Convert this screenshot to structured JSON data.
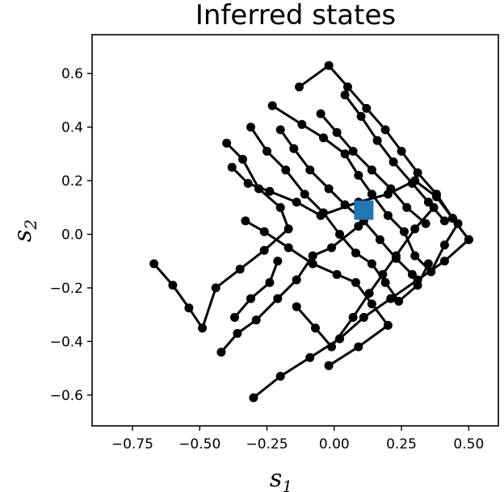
{
  "chart_data": {
    "type": "scatter",
    "title": "Inferred states",
    "xlabel": {
      "base": "s",
      "sub": "1"
    },
    "ylabel": {
      "base": "s",
      "sub": "2"
    },
    "xlim": [
      -0.9,
      0.61
    ],
    "ylim": [
      -0.715,
      0.745
    ],
    "xticks": [
      -0.75,
      -0.5,
      -0.25,
      0.0,
      0.25,
      0.5
    ],
    "xtick_labels": [
      "−0.75",
      "−0.50",
      "−0.25",
      "0.00",
      "0.25",
      "0.50"
    ],
    "yticks": [
      -0.6,
      -0.4,
      -0.2,
      0.0,
      0.2,
      0.4,
      0.6
    ],
    "ytick_labels": [
      "−0.6",
      "−0.4",
      "−0.2",
      "0.0",
      "0.2",
      "0.4",
      "0.6"
    ],
    "grid": false,
    "marker_color": "#000000",
    "highlight_color": "#1f77b4",
    "highlight_point": [
      0.11,
      0.09
    ],
    "series": [
      {
        "points": [
          [
            -0.67,
            -0.11
          ],
          [
            -0.6,
            -0.19
          ],
          [
            -0.54,
            -0.275
          ],
          [
            -0.49,
            -0.35
          ],
          [
            -0.44,
            -0.2
          ],
          [
            -0.35,
            -0.13
          ],
          [
            -0.26,
            -0.06
          ],
          [
            -0.17,
            0.02
          ],
          [
            -0.2,
            0.1
          ],
          [
            -0.28,
            0.17
          ],
          [
            -0.34,
            0.28
          ],
          [
            -0.4,
            0.34
          ]
        ]
      },
      {
        "points": [
          [
            -0.42,
            -0.44
          ],
          [
            -0.36,
            -0.37
          ],
          [
            -0.29,
            -0.32
          ],
          [
            -0.21,
            -0.24
          ],
          [
            -0.14,
            -0.17
          ],
          [
            -0.08,
            -0.08
          ],
          [
            -0.01,
            -0.05
          ],
          [
            0.09,
            0.03
          ]
        ]
      },
      {
        "points": [
          [
            -0.3,
            -0.61
          ],
          [
            -0.2,
            -0.53
          ],
          [
            -0.09,
            -0.46
          ],
          [
            0.02,
            -0.39
          ],
          [
            0.11,
            -0.31
          ],
          [
            0.21,
            -0.24
          ],
          [
            0.31,
            -0.17
          ],
          [
            0.41,
            -0.1
          ],
          [
            0.5,
            -0.02
          ]
        ]
      },
      {
        "points": [
          [
            -0.38,
            0.25
          ],
          [
            -0.32,
            0.19
          ],
          [
            -0.24,
            0.16
          ],
          [
            -0.14,
            0.12
          ],
          [
            -0.05,
            0.07
          ],
          [
            0.09,
            0.12
          ],
          [
            0.2,
            0.15
          ],
          [
            0.3,
            0.2
          ],
          [
            0.38,
            0.14
          ],
          [
            0.44,
            0.06
          ],
          [
            0.5,
            -0.02
          ]
        ]
      },
      {
        "points": [
          [
            -0.31,
            0.4
          ],
          [
            -0.25,
            0.31
          ],
          [
            -0.18,
            0.24
          ],
          [
            -0.11,
            0.15
          ],
          [
            -0.04,
            0.08
          ],
          [
            0.02,
            0.0
          ],
          [
            0.08,
            -0.07
          ],
          [
            0.14,
            -0.11
          ],
          [
            0.19,
            -0.18
          ],
          [
            0.24,
            -0.25
          ],
          [
            0.31,
            -0.19
          ],
          [
            0.35,
            -0.11
          ]
        ]
      },
      {
        "points": [
          [
            -0.23,
            0.48
          ],
          [
            -0.12,
            0.41
          ],
          [
            -0.04,
            0.36
          ],
          [
            0.04,
            0.3
          ],
          [
            0.09,
            0.22
          ],
          [
            0.14,
            0.15
          ],
          [
            0.2,
            0.07
          ],
          [
            0.26,
            0.01
          ],
          [
            0.3,
            -0.08
          ],
          [
            0.36,
            -0.14
          ],
          [
            0.41,
            -0.04
          ],
          [
            0.46,
            0.04
          ]
        ]
      },
      {
        "points": [
          [
            -0.13,
            0.55
          ],
          [
            -0.02,
            0.63
          ],
          [
            0.05,
            0.55
          ],
          [
            0.12,
            0.47
          ],
          [
            0.19,
            0.39
          ],
          [
            0.25,
            0.31
          ],
          [
            0.31,
            0.23
          ],
          [
            0.38,
            0.15
          ],
          [
            0.44,
            0.06
          ],
          [
            0.5,
            -0.02
          ]
        ]
      },
      {
        "points": [
          [
            -0.21,
            -0.1
          ],
          [
            -0.24,
            -0.18
          ],
          [
            -0.31,
            -0.24
          ],
          [
            -0.37,
            -0.31
          ]
        ]
      },
      {
        "points": [
          [
            -0.2,
            0.39
          ],
          [
            -0.15,
            0.32
          ],
          [
            -0.09,
            0.24
          ],
          [
            -0.02,
            0.17
          ],
          [
            0.04,
            0.11
          ],
          [
            0.11,
            0.05
          ],
          [
            0.17,
            -0.02
          ],
          [
            0.23,
            -0.09
          ],
          [
            0.29,
            -0.15
          ]
        ]
      },
      {
        "points": [
          [
            -0.33,
            0.05
          ],
          [
            -0.26,
            0.01
          ],
          [
            -0.17,
            -0.05
          ],
          [
            -0.08,
            -0.11
          ],
          [
            0.01,
            -0.15
          ],
          [
            0.08,
            -0.18
          ],
          [
            0.14,
            -0.26
          ],
          [
            0.2,
            -0.34
          ],
          [
            0.09,
            -0.42
          ],
          [
            -0.02,
            -0.49
          ]
        ]
      },
      {
        "points": [
          [
            -0.14,
            -0.27
          ],
          [
            -0.07,
            -0.35
          ],
          [
            -0.01,
            -0.42
          ],
          [
            0.07,
            -0.31
          ],
          [
            0.13,
            -0.22
          ],
          [
            0.18,
            -0.15
          ],
          [
            0.23,
            -0.08
          ],
          [
            0.3,
            0.02
          ],
          [
            0.37,
            0.1
          ]
        ]
      },
      {
        "points": [
          [
            -0.05,
            0.45
          ],
          [
            0.01,
            0.38
          ],
          [
            0.07,
            0.31
          ],
          [
            0.14,
            0.24
          ],
          [
            0.21,
            0.17
          ],
          [
            0.27,
            0.1
          ],
          [
            0.34,
            0.04
          ]
        ]
      },
      {
        "points": [
          [
            0.04,
            0.52
          ],
          [
            0.1,
            0.44
          ],
          [
            0.16,
            0.35
          ],
          [
            0.22,
            0.27
          ],
          [
            0.29,
            0.19
          ],
          [
            0.35,
            0.12
          ],
          [
            0.41,
            0.05
          ]
        ]
      }
    ]
  }
}
